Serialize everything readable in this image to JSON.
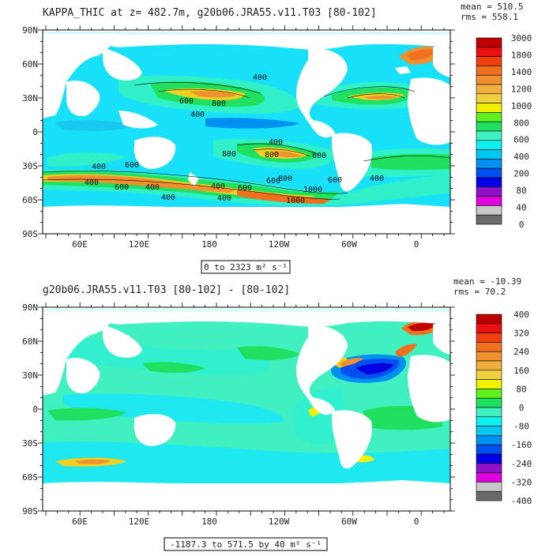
{
  "colorbar_palette": [
    "#6a6a6a",
    "#c8c8c8",
    "#e000e0",
    "#9010c8",
    "#0000e8",
    "#0050f0",
    "#0090f0",
    "#00c8f0",
    "#10f0f0",
    "#40f0c0",
    "#20e060",
    "#60f020",
    "#f0f000",
    "#f0d040",
    "#f0b040",
    "#f09030",
    "#f07020",
    "#f04010",
    "#e81010",
    "#c00000"
  ],
  "chart_data": [
    {
      "type": "heatmap",
      "title": "KAPPA_THIC at z= 482.7m, g20b06.JRA55.v11.T03 [80-102]",
      "stats": [
        "mean = 510.5",
        "rms = 558.1"
      ],
      "range_note": "0 to 2323 m² s⁻¹",
      "x_ticks": [
        "60E",
        "120E",
        "180",
        "120W",
        "60W",
        "0"
      ],
      "y_ticks": [
        "90N",
        "60N",
        "30N",
        "0",
        "30S",
        "60S",
        "90S"
      ],
      "colorbar_labels": [
        "3000",
        "1800",
        "1400",
        "1200",
        "1000",
        "800",
        "600",
        "400",
        "200",
        "80",
        "40",
        "0"
      ],
      "contour_labels": [
        "400",
        "600",
        "800",
        "400",
        "400",
        "400",
        "600",
        "400",
        "600",
        "800",
        "800",
        "600",
        "800",
        "400",
        "600",
        "400",
        "1000",
        "600",
        "1000",
        "400",
        "400",
        "600",
        "400"
      ]
    },
    {
      "type": "heatmap",
      "title": "g20b06.JRA55.v11.T03 [80-102] -  [80-102]",
      "stats": [
        "mean = -10.39",
        "rms = 70.2"
      ],
      "range_note": "-1187.3 to 571.5 by 40 m² s⁻¹",
      "x_ticks": [
        "60E",
        "120E",
        "180",
        "120W",
        "60W",
        "0"
      ],
      "y_ticks": [
        "90N",
        "60N",
        "30N",
        "0",
        "30S",
        "60S",
        "90S"
      ],
      "colorbar_labels": [
        "400",
        "320",
        "240",
        "160",
        "80",
        "0",
        "-80",
        "-160",
        "-240",
        "-320",
        "-400"
      ]
    }
  ]
}
